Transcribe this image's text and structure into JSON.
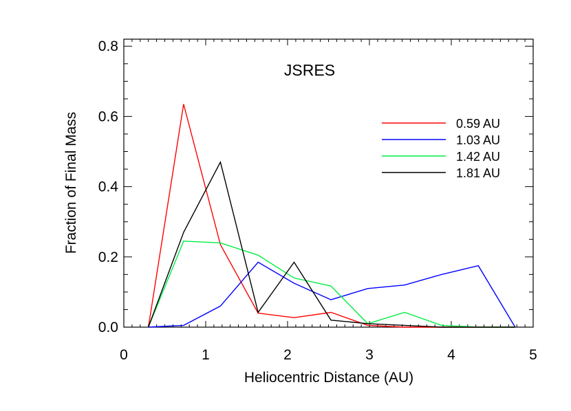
{
  "chart_data": {
    "type": "line",
    "title": "JSRES",
    "xlabel": "Heliocentric Distance (AU)",
    "ylabel": "Fraction of Final Mass",
    "xlim": [
      0,
      5
    ],
    "ylim": [
      0,
      0.82
    ],
    "xticks": [
      0,
      1,
      2,
      3,
      4,
      5
    ],
    "xtick_labels": [
      "0",
      "1",
      "2",
      "3",
      "4",
      "5"
    ],
    "yticks": [
      0.0,
      0.2,
      0.4,
      0.6,
      0.8
    ],
    "ytick_labels": [
      "0.0",
      "0.2",
      "0.4",
      "0.6",
      "0.8"
    ],
    "grid": false,
    "legend_position": "top-right",
    "series": [
      {
        "name": "0.59 AU",
        "color": "#ff0000",
        "x": [
          0.3,
          0.73,
          1.18,
          1.64,
          2.08,
          2.53,
          2.98,
          3.43,
          3.88,
          4.33,
          4.78
        ],
        "y": [
          0.0,
          0.635,
          0.235,
          0.04,
          0.027,
          0.042,
          0.005,
          0.0,
          0.0,
          0.0,
          0.0
        ]
      },
      {
        "name": "1.03 AU",
        "color": "#0000ff",
        "x": [
          0.3,
          0.73,
          1.18,
          1.64,
          2.08,
          2.53,
          2.98,
          3.43,
          3.88,
          4.33,
          4.78
        ],
        "y": [
          0.0,
          0.005,
          0.06,
          0.185,
          0.125,
          0.078,
          0.11,
          0.12,
          0.15,
          0.175,
          0.0
        ]
      },
      {
        "name": "1.42 AU",
        "color": "#00ee44",
        "x": [
          0.3,
          0.73,
          1.18,
          1.64,
          2.08,
          2.53,
          2.98,
          3.43,
          3.88,
          4.33,
          4.78
        ],
        "y": [
          0.0,
          0.245,
          0.24,
          0.205,
          0.14,
          0.117,
          0.01,
          0.042,
          0.005,
          0.0,
          0.0
        ]
      },
      {
        "name": "1.81 AU",
        "color": "#000000",
        "x": [
          0.3,
          0.73,
          1.18,
          1.64,
          2.08,
          2.53,
          2.98,
          3.43,
          3.88,
          4.33,
          4.78
        ],
        "y": [
          0.0,
          0.27,
          0.47,
          0.042,
          0.185,
          0.02,
          0.01,
          0.005,
          0.0,
          0.0,
          0.0
        ]
      }
    ]
  }
}
